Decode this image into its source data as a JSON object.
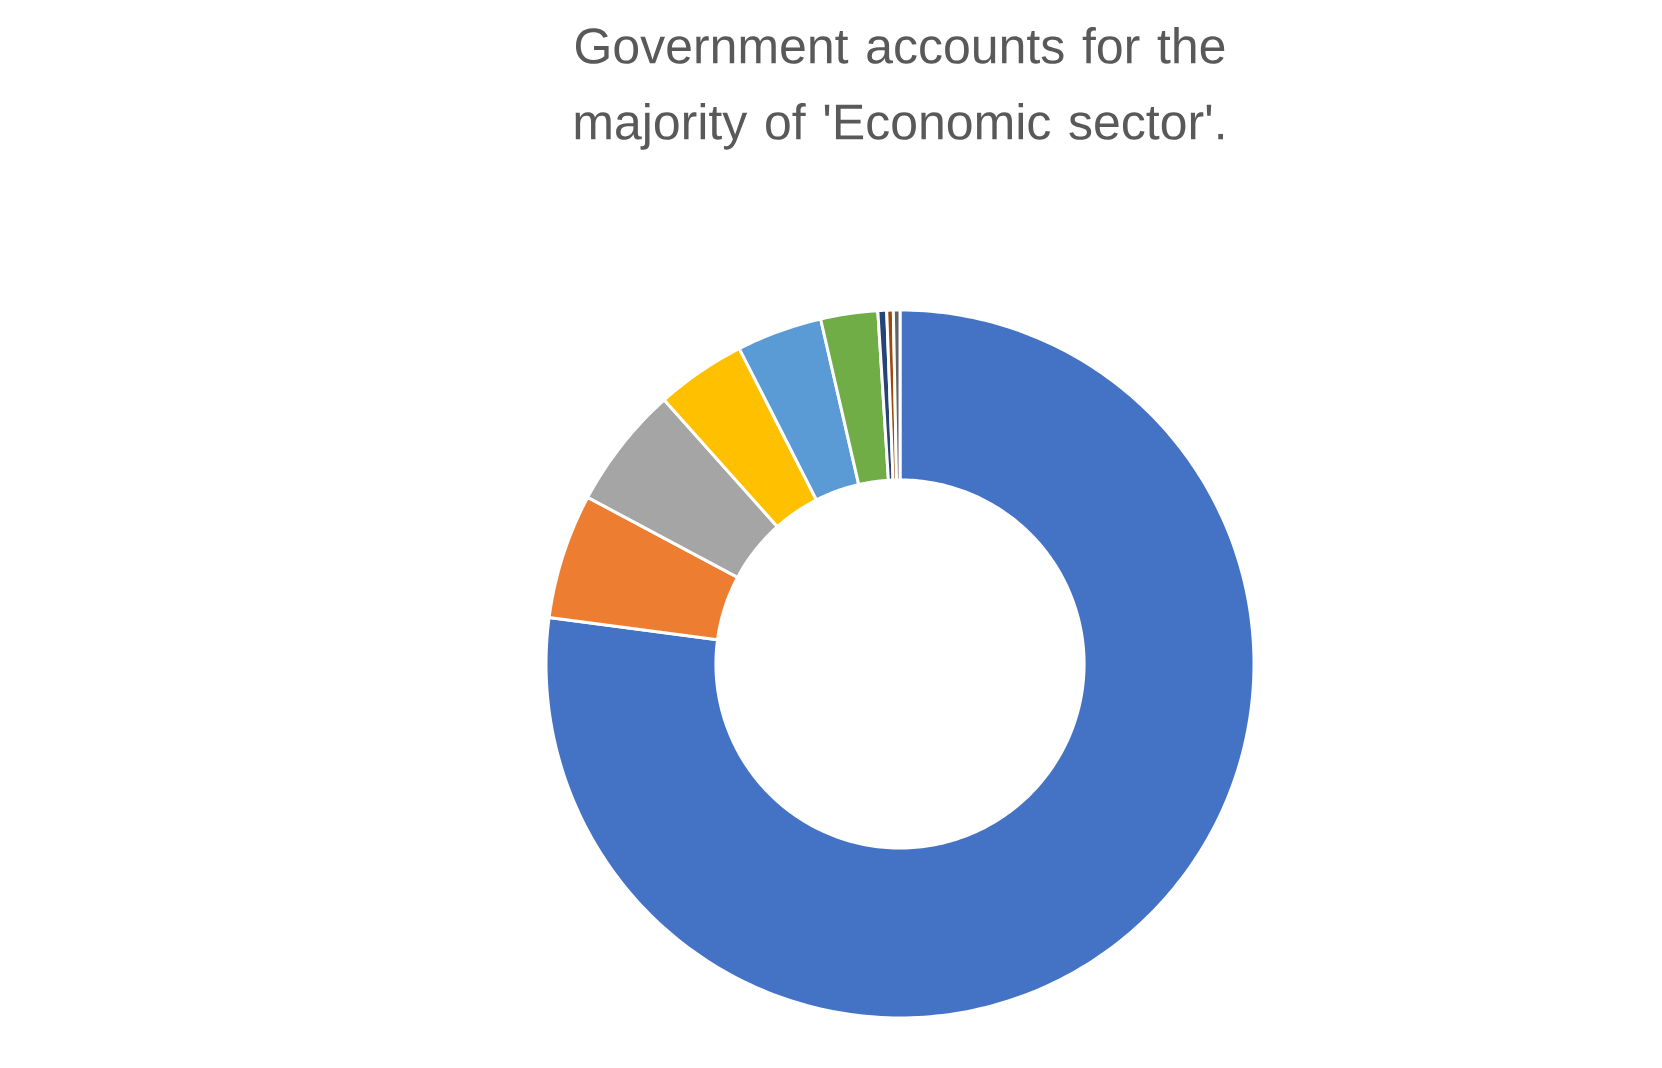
{
  "chart_data": {
    "type": "donut",
    "title": "Government accounts for the majority of 'Economic sector'.",
    "categories": [
      null,
      null,
      null,
      null,
      null,
      null,
      null,
      null,
      null
    ],
    "values": [
      77.1,
      5.7,
      5.6,
      4.1,
      3.9,
      2.6,
      0.4,
      0.3,
      0.3
    ],
    "colors": [
      "#4472c4",
      "#ed7d31",
      "#a5a5a5",
      "#ffc000",
      "#5b9bd5",
      "#70ad47",
      "#264478",
      "#9e480e",
      "#636363"
    ]
  }
}
